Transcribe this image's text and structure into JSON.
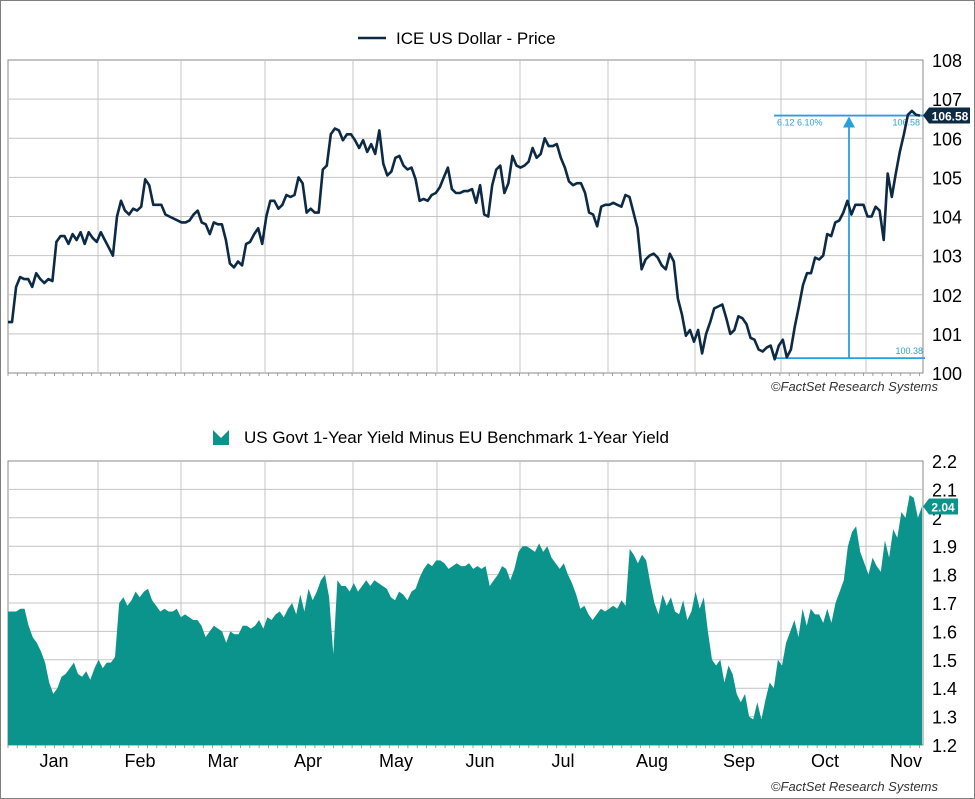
{
  "copyright": "©FactSet Research Systems",
  "months": [
    "Jan",
    "Feb",
    "Mar",
    "Apr",
    "May",
    "Jun",
    "Jul",
    "Aug",
    "Sep",
    "Oct",
    "Nov"
  ],
  "colors": {
    "price_line": "#0d2a45",
    "spread_fill": "#0b948b",
    "annotation": "#2aa0db",
    "grid": "#c4c4c4"
  },
  "chart_data": [
    {
      "type": "line",
      "legend_position": "top-center",
      "legend_icon": "line-swatch-icon",
      "grid": true,
      "ylim": [
        100,
        108
      ],
      "yticks": [
        "100",
        "101",
        "102",
        "103",
        "104",
        "105",
        "106",
        "107",
        "108"
      ],
      "last_value_badge": "106.58",
      "annotation": {
        "low_value": 100.38,
        "high_value": 106.58,
        "low_label": "100.38",
        "high_label": "106.58",
        "change_label": "6.12 6.10%"
      },
      "series": [
        {
          "name": "ICE US Dollar - Price",
          "values": [
            101.3,
            101.3,
            102.2,
            102.45,
            102.4,
            102.4,
            102.2,
            102.55,
            102.4,
            102.3,
            102.4,
            102.35,
            103.35,
            103.5,
            103.5,
            103.3,
            103.55,
            103.4,
            103.6,
            103.3,
            103.6,
            103.45,
            103.35,
            103.6,
            103.4,
            103.2,
            103.0,
            104.0,
            104.4,
            104.15,
            104.05,
            104.2,
            104.15,
            104.25,
            104.95,
            104.8,
            104.3,
            104.3,
            104.3,
            104.05,
            104.0,
            103.95,
            103.9,
            103.85,
            103.85,
            103.9,
            104.05,
            104.15,
            103.85,
            103.8,
            103.55,
            103.85,
            103.8,
            103.8,
            103.4,
            102.8,
            102.7,
            102.85,
            102.75,
            103.3,
            103.35,
            103.55,
            103.7,
            103.3,
            104.0,
            104.4,
            104.4,
            104.2,
            104.3,
            104.55,
            104.5,
            104.55,
            105.0,
            104.85,
            104.1,
            104.2,
            104.1,
            104.1,
            105.2,
            105.3,
            106.1,
            106.25,
            106.2,
            105.95,
            106.1,
            106.1,
            105.95,
            105.75,
            105.95,
            105.65,
            105.85,
            105.6,
            106.2,
            105.35,
            105.05,
            105.15,
            105.5,
            105.55,
            105.3,
            105.2,
            105.25,
            104.95,
            104.4,
            104.45,
            104.4,
            104.55,
            104.6,
            104.75,
            105.0,
            105.25,
            104.7,
            104.6,
            104.6,
            104.65,
            104.65,
            104.7,
            104.35,
            104.8,
            104.05,
            104.0,
            104.8,
            105.2,
            105.3,
            104.6,
            104.85,
            105.55,
            105.3,
            105.25,
            105.3,
            105.4,
            105.75,
            105.5,
            105.6,
            106.0,
            105.8,
            105.8,
            105.85,
            105.5,
            105.25,
            104.9,
            104.8,
            104.85,
            104.85,
            104.6,
            104.1,
            104.05,
            103.75,
            104.25,
            104.3,
            104.3,
            104.35,
            104.3,
            104.25,
            104.55,
            104.5,
            104.1,
            103.7,
            102.65,
            102.9,
            103.0,
            103.05,
            102.95,
            102.75,
            102.65,
            103.05,
            102.85,
            101.9,
            101.5,
            100.95,
            101.1,
            100.8,
            101.1,
            100.5,
            101.0,
            101.3,
            101.65,
            101.7,
            101.75,
            101.4,
            101.0,
            101.1,
            101.45,
            101.4,
            101.25,
            100.9,
            100.85,
            100.6,
            100.55,
            100.65,
            100.7,
            100.35,
            100.7,
            100.85,
            100.4,
            100.6,
            101.2,
            101.7,
            102.25,
            102.55,
            102.55,
            102.95,
            102.9,
            103.0,
            103.55,
            103.5,
            103.85,
            103.9,
            104.1,
            104.4,
            104.05,
            104.3,
            104.3,
            104.3,
            104.0,
            104.0,
            104.25,
            104.15,
            103.4,
            105.1,
            104.5,
            105.1,
            105.65,
            106.1,
            106.6,
            106.7,
            106.6,
            106.58
          ]
        }
      ]
    },
    {
      "type": "area",
      "legend_position": "top-center",
      "legend_icon": "area-swatch-icon",
      "grid": true,
      "ylim": [
        1.2,
        2.2
      ],
      "yticks": [
        "1.2",
        "1.3",
        "1.4",
        "1.5",
        "1.6",
        "1.7",
        "1.8",
        "1.9",
        "2",
        "2.1",
        "2.2"
      ],
      "last_value_badge": "2.04",
      "series": [
        {
          "name": "US Govt 1-Year Yield Minus EU Benchmark 1-Year Yield",
          "values": [
            1.67,
            1.67,
            1.67,
            1.68,
            1.68,
            1.62,
            1.58,
            1.56,
            1.53,
            1.49,
            1.42,
            1.38,
            1.4,
            1.44,
            1.45,
            1.47,
            1.49,
            1.45,
            1.44,
            1.46,
            1.43,
            1.47,
            1.5,
            1.47,
            1.49,
            1.49,
            1.51,
            1.7,
            1.72,
            1.69,
            1.71,
            1.74,
            1.72,
            1.74,
            1.75,
            1.71,
            1.69,
            1.67,
            1.68,
            1.67,
            1.67,
            1.68,
            1.65,
            1.66,
            1.65,
            1.64,
            1.64,
            1.62,
            1.58,
            1.6,
            1.62,
            1.61,
            1.6,
            1.56,
            1.6,
            1.59,
            1.59,
            1.62,
            1.62,
            1.61,
            1.62,
            1.64,
            1.61,
            1.65,
            1.64,
            1.66,
            1.67,
            1.65,
            1.68,
            1.7,
            1.66,
            1.73,
            1.67,
            1.75,
            1.71,
            1.74,
            1.78,
            1.8,
            1.72,
            1.52,
            1.78,
            1.76,
            1.76,
            1.74,
            1.77,
            1.74,
            1.76,
            1.78,
            1.76,
            1.78,
            1.77,
            1.76,
            1.75,
            1.72,
            1.71,
            1.74,
            1.73,
            1.71,
            1.74,
            1.75,
            1.79,
            1.82,
            1.84,
            1.83,
            1.85,
            1.85,
            1.84,
            1.82,
            1.83,
            1.84,
            1.83,
            1.83,
            1.84,
            1.82,
            1.83,
            1.82,
            1.83,
            1.76,
            1.78,
            1.8,
            1.83,
            1.82,
            1.78,
            1.82,
            1.88,
            1.9,
            1.9,
            1.89,
            1.88,
            1.91,
            1.88,
            1.9,
            1.86,
            1.84,
            1.82,
            1.84,
            1.8,
            1.77,
            1.73,
            1.68,
            1.69,
            1.66,
            1.64,
            1.66,
            1.68,
            1.67,
            1.68,
            1.69,
            1.68,
            1.71,
            1.69,
            1.89,
            1.87,
            1.84,
            1.87,
            1.85,
            1.77,
            1.7,
            1.66,
            1.73,
            1.69,
            1.72,
            1.67,
            1.66,
            1.71,
            1.64,
            1.67,
            1.74,
            1.68,
            1.72,
            1.6,
            1.5,
            1.48,
            1.5,
            1.42,
            1.48,
            1.45,
            1.38,
            1.35,
            1.38,
            1.3,
            1.29,
            1.35,
            1.29,
            1.36,
            1.42,
            1.4,
            1.5,
            1.48,
            1.56,
            1.6,
            1.64,
            1.58,
            1.68,
            1.62,
            1.68,
            1.66,
            1.66,
            1.63,
            1.68,
            1.63,
            1.7,
            1.74,
            1.78,
            1.9,
            1.95,
            1.97,
            1.88,
            1.84,
            1.8,
            1.86,
            1.83,
            1.81,
            1.92,
            1.86,
            1.96,
            1.93,
            2.02,
            2.0,
            2.08,
            2.07,
            2.0,
            2.04
          ]
        }
      ]
    }
  ]
}
